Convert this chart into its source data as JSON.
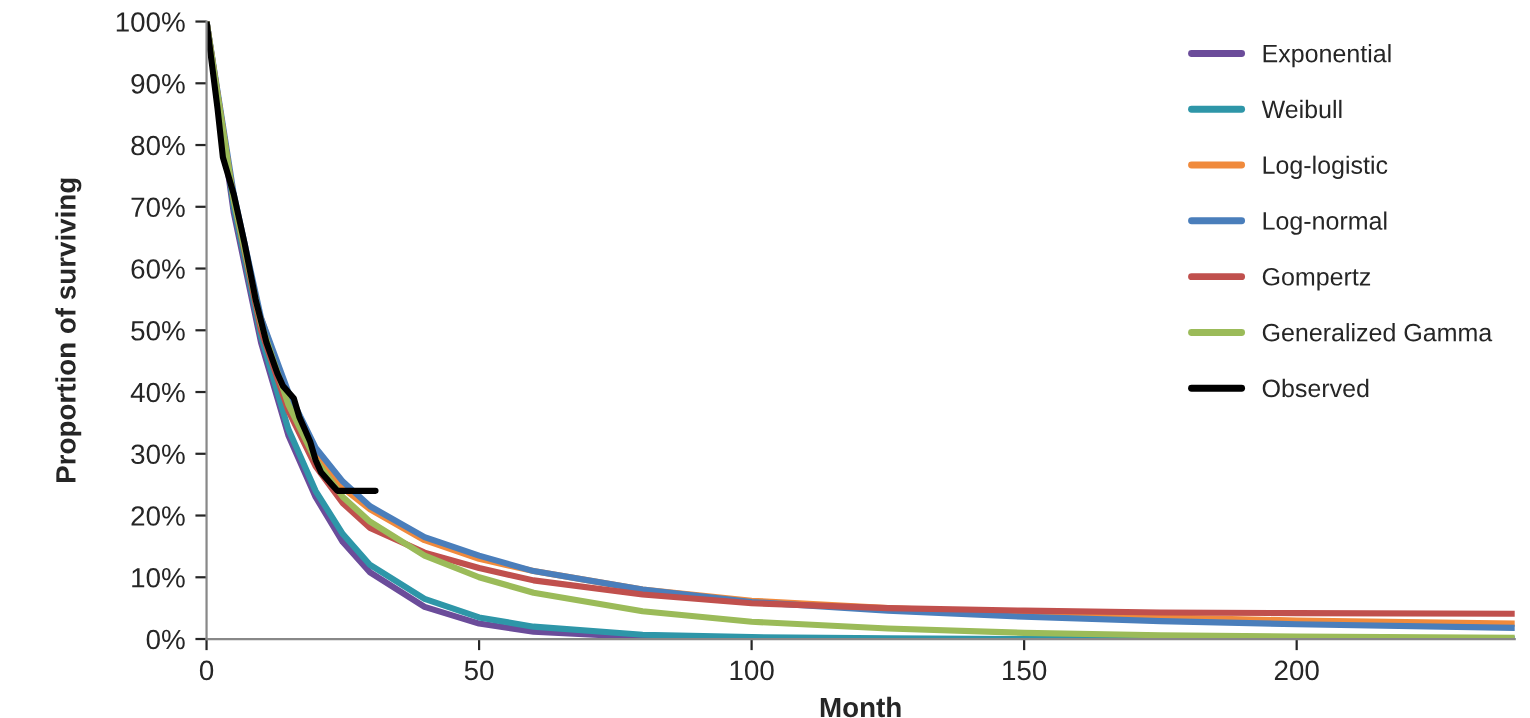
{
  "chart_data": {
    "type": "line",
    "xlabel": "Month",
    "ylabel": "Proportion of surviving",
    "x": [
      0,
      5,
      10,
      15,
      20,
      25,
      30,
      40,
      50,
      60,
      80,
      100,
      125,
      150,
      175,
      200,
      240
    ],
    "xlim": [
      0,
      240
    ],
    "xticks": [
      0,
      50,
      100,
      150,
      200
    ],
    "ylim": [
      0,
      1
    ],
    "yticks": [
      {
        "value": 0,
        "label": "0%"
      },
      {
        "value": 0.1,
        "label": "10%"
      },
      {
        "value": 0.2,
        "label": "20%"
      },
      {
        "value": 0.3,
        "label": "30%"
      },
      {
        "value": 0.4,
        "label": "40%"
      },
      {
        "value": 0.5,
        "label": "50%"
      },
      {
        "value": 0.6,
        "label": "60%"
      },
      {
        "value": 0.7,
        "label": "70%"
      },
      {
        "value": 0.8,
        "label": "80%"
      },
      {
        "value": 0.9,
        "label": "90%"
      },
      {
        "value": 1,
        "label": "100%"
      }
    ],
    "grid": false,
    "legend": "top right",
    "marker": "none",
    "line_style": "solid",
    "series": [
      {
        "name": "Exponential",
        "color": "#6b4c9a",
        "values": [
          1,
          0.69,
          0.48,
          0.33,
          0.23,
          0.157,
          0.108,
          0.052,
          0.025,
          0.012,
          0.003,
          0.001,
          0,
          0,
          0,
          null,
          null
        ]
      },
      {
        "name": "Weibull",
        "color": "#2e96a8",
        "values": [
          1,
          0.7,
          0.49,
          0.34,
          0.24,
          0.17,
          0.12,
          0.065,
          0.035,
          0.02,
          0.007,
          0.003,
          0.001,
          0,
          0,
          0,
          0
        ]
      },
      {
        "name": "Log-logistic",
        "color": "#f08a3c",
        "values": [
          null,
          null,
          0.52,
          0.39,
          0.3,
          0.245,
          0.21,
          0.16,
          0.13,
          0.11,
          0.08,
          0.062,
          0.05,
          0.041,
          0.035,
          0.03,
          0.025
        ]
      },
      {
        "name": "Log-normal",
        "color": "#4a7ebb",
        "values": [
          1,
          0.72,
          0.52,
          0.4,
          0.31,
          0.255,
          0.215,
          0.165,
          0.135,
          0.11,
          0.08,
          0.06,
          0.046,
          0.036,
          0.029,
          0.024,
          0.018
        ]
      },
      {
        "name": "Gompertz",
        "color": "#c0504d",
        "values": [
          1,
          0.71,
          0.5,
          0.37,
          0.28,
          0.22,
          0.18,
          0.14,
          0.115,
          0.095,
          0.072,
          0.058,
          0.05,
          0.046,
          0.043,
          0.042,
          0.041
        ]
      },
      {
        "name": "Generalized Gamma",
        "color": "#9bbb59",
        "values": [
          1,
          0.71,
          0.51,
          0.38,
          0.29,
          0.23,
          0.19,
          0.135,
          0.1,
          0.075,
          0.045,
          0.028,
          0.017,
          0.01,
          0.006,
          0.004,
          0.002
        ]
      },
      {
        "name": "Observed",
        "color": "#000000",
        "x": [
          0,
          2,
          3,
          5,
          7,
          9,
          11,
          13,
          14,
          16,
          17,
          18,
          19,
          20,
          21,
          22,
          23,
          24,
          31
        ],
        "values": [
          1,
          0.86,
          0.78,
          0.72,
          0.64,
          0.55,
          0.48,
          0.43,
          0.41,
          0.39,
          0.36,
          0.34,
          0.32,
          0.29,
          0.27,
          0.26,
          0.25,
          0.24,
          0.24
        ]
      }
    ]
  }
}
